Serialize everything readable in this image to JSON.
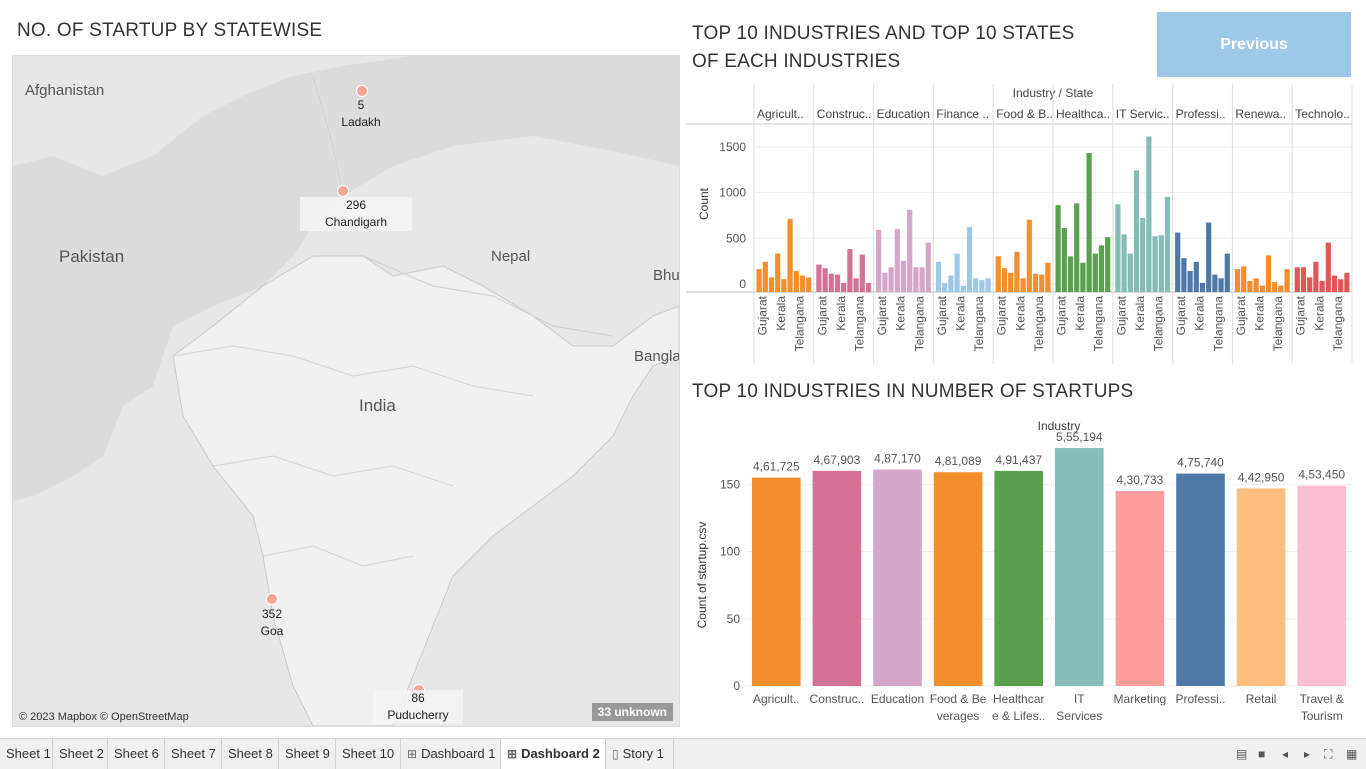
{
  "map": {
    "title": "NO. OF STARTUP BY STATEWISE",
    "labels": {
      "afghanistan": "Afghanistan",
      "pakistan": "Pakistan",
      "nepal": "Nepal",
      "bhutan": "Bhu",
      "bangladesh": "Bangla",
      "india": "India"
    },
    "points": [
      {
        "name": "Ladakh",
        "count": "5"
      },
      {
        "name": "Chandigarh",
        "count": "296"
      },
      {
        "name": "Goa",
        "count": "352"
      },
      {
        "name": "Puducherry",
        "count": "86"
      }
    ],
    "copyright": "© 2023 Mapbox © OpenStreetMap",
    "unknown": "33 unknown"
  },
  "top_states": {
    "title_line1": "TOP 10 INDUSTRIES AND TOP 10 STATES",
    "title_line2": "OF EACH INDUSTRIES"
  },
  "top_industries": {
    "title": "TOP 10 INDUSTRIES IN NUMBER OF STARTUPS"
  },
  "previous_button": "Previous",
  "tabs": [
    {
      "label": "Sheet 1",
      "icon": ""
    },
    {
      "label": "Sheet 2",
      "icon": ""
    },
    {
      "label": "Sheet 6",
      "icon": ""
    },
    {
      "label": "Sheet 7",
      "icon": ""
    },
    {
      "label": "Sheet 8",
      "icon": ""
    },
    {
      "label": "Sheet 9",
      "icon": ""
    },
    {
      "label": "Sheet 10",
      "icon": ""
    },
    {
      "label": "Dashboard 1",
      "icon": "dashboard-icon"
    },
    {
      "label": "Dashboard 2",
      "icon": "dashboard-icon",
      "active": true
    },
    {
      "label": "Story 1",
      "icon": "story-icon"
    }
  ],
  "chart_data": [
    {
      "type": "bar",
      "header": "Industry / State",
      "ylabel": "Count",
      "ylim": [
        0,
        1750
      ],
      "yticks": [
        0,
        500,
        1000,
        1500
      ],
      "grid": true,
      "state_labels": [
        "Gujarat",
        "Kerala",
        "Telangana"
      ],
      "series": [
        {
          "name": "Agricult..",
          "color": "#f28e2b",
          "values": [
            250,
            330,
            160,
            420,
            140,
            800,
            230,
            180,
            160
          ]
        },
        {
          "name": "Construc..",
          "color": "#d37295",
          "values": [
            300,
            260,
            200,
            190,
            100,
            470,
            150,
            410,
            100
          ]
        },
        {
          "name": "Education",
          "color": "#d4a6c8",
          "values": [
            680,
            210,
            270,
            690,
            340,
            900,
            270,
            270,
            540
          ]
        },
        {
          "name": "Finance ..",
          "color": "#9dc8e8",
          "values": [
            330,
            100,
            180,
            420,
            70,
            710,
            150,
            130,
            150
          ]
        },
        {
          "name": "Food & B..",
          "color": "#f28e2b",
          "values": [
            390,
            260,
            210,
            440,
            150,
            790,
            200,
            190,
            320
          ]
        },
        {
          "name": "Healthca..",
          "color": "#59a14f",
          "values": [
            950,
            700,
            390,
            970,
            320,
            1520,
            420,
            510,
            600
          ]
        },
        {
          "name": "IT Servic..",
          "color": "#86bcb6",
          "values": [
            960,
            630,
            420,
            1330,
            810,
            1700,
            610,
            620,
            1040
          ]
        },
        {
          "name": "Professi..",
          "color": "#4e79a7",
          "values": [
            650,
            370,
            230,
            330,
            100,
            760,
            190,
            150,
            420
          ]
        },
        {
          "name": "Renewa..",
          "color": "#f28e2b",
          "values": [
            250,
            280,
            120,
            150,
            70,
            400,
            110,
            70,
            250
          ]
        },
        {
          "name": "Technolo..",
          "color": "#e15759",
          "values": [
            270,
            270,
            160,
            330,
            120,
            540,
            180,
            140,
            210
          ]
        }
      ]
    },
    {
      "type": "bar",
      "header": "Industry",
      "ylabel": "Count of startup.csv",
      "ylim": [
        0,
        180
      ],
      "yticks": [
        0,
        50,
        100,
        150
      ],
      "grid": true,
      "categories": [
        [
          "Agricult.."
        ],
        [
          "Construc.."
        ],
        [
          "Education"
        ],
        [
          "Food & Be",
          "verages"
        ],
        [
          "Healthcar",
          "e & Lifes.."
        ],
        [
          "IT",
          "Services"
        ],
        [
          "Marketing"
        ],
        [
          "Professi.."
        ],
        [
          "Retail"
        ],
        [
          "Travel &",
          "Tourism"
        ]
      ],
      "values": [
        155,
        160,
        161,
        159,
        160,
        177,
        145,
        158,
        147,
        149
      ],
      "data_labels": [
        "4,61,725",
        "4,67,903",
        "4,87,170",
        "4,81,089",
        "4,91,437",
        "5,55,194",
        "4,30,733",
        "4,75,740",
        "4,42,950",
        "4,53,450"
      ],
      "colors": [
        "#f28e2b",
        "#d37295",
        "#d4a6c8",
        "#f28e2b",
        "#59a14f",
        "#86bcb6",
        "#ff9d9a",
        "#4e79a7",
        "#ffbe7d",
        "#fabfd2"
      ]
    }
  ]
}
